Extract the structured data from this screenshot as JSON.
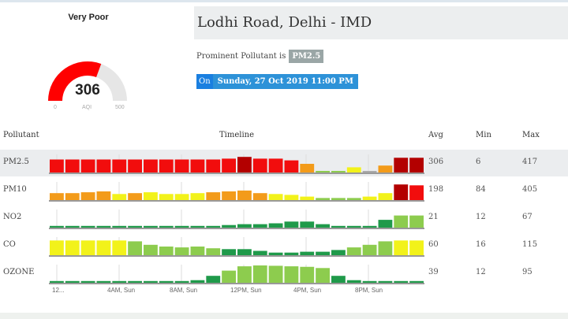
{
  "gauge": {
    "category": "Very Poor",
    "value": 306,
    "min_label": "0",
    "unit_label": "AQI",
    "max_label": "500",
    "max": 500,
    "fill_color": "#ff0000",
    "track_color": "#e6e6e6"
  },
  "station": {
    "title": "Lodhi Road, Delhi - IMD",
    "prominent_label": "Prominent Pollutant is",
    "prominent_value": "PM2.5",
    "on_label": "On",
    "datetime": "Sunday, 27 Oct 2019 11:00 PM"
  },
  "table": {
    "headers": {
      "pollutant": "Pollutant",
      "timeline": "Timeline",
      "avg": "Avg",
      "min": "Min",
      "max": "Max"
    },
    "colors": {
      "r": "#f20d0d",
      "dr": "#b30000",
      "o": "#f39b1a",
      "y": "#f2f21a",
      "lg": "#8dcc4e",
      "g": "#1f9a4a",
      "gr": "#aaaaaa"
    },
    "rows": [
      {
        "name": "PM2.5",
        "avg": "306",
        "min": "6",
        "max": "417",
        "bars": [
          [
            0.75,
            "r"
          ],
          [
            0.75,
            "r"
          ],
          [
            0.75,
            "r"
          ],
          [
            0.75,
            "r"
          ],
          [
            0.75,
            "r"
          ],
          [
            0.75,
            "r"
          ],
          [
            0.75,
            "r"
          ],
          [
            0.75,
            "r"
          ],
          [
            0.75,
            "r"
          ],
          [
            0.75,
            "r"
          ],
          [
            0.75,
            "r"
          ],
          [
            0.8,
            "r"
          ],
          [
            0.9,
            "dr"
          ],
          [
            0.8,
            "r"
          ],
          [
            0.8,
            "r"
          ],
          [
            0.7,
            "r"
          ],
          [
            0.5,
            "o"
          ],
          [
            0.08,
            "lg"
          ],
          [
            0.08,
            "lg"
          ],
          [
            0.3,
            "y"
          ],
          [
            0.04,
            "gr"
          ],
          [
            0.4,
            "o"
          ],
          [
            0.85,
            "dr"
          ],
          [
            0.85,
            "dr"
          ]
        ]
      },
      {
        "name": "PM10",
        "avg": "198",
        "min": "84",
        "max": "405",
        "bars": [
          [
            0.4,
            "o"
          ],
          [
            0.4,
            "o"
          ],
          [
            0.45,
            "o"
          ],
          [
            0.5,
            "o"
          ],
          [
            0.35,
            "y"
          ],
          [
            0.4,
            "o"
          ],
          [
            0.45,
            "y"
          ],
          [
            0.35,
            "y"
          ],
          [
            0.35,
            "y"
          ],
          [
            0.4,
            "y"
          ],
          [
            0.45,
            "o"
          ],
          [
            0.5,
            "o"
          ],
          [
            0.55,
            "o"
          ],
          [
            0.4,
            "o"
          ],
          [
            0.35,
            "y"
          ],
          [
            0.3,
            "y"
          ],
          [
            0.2,
            "y"
          ],
          [
            0.12,
            "lg"
          ],
          [
            0.12,
            "lg"
          ],
          [
            0.12,
            "lg"
          ],
          [
            0.2,
            "y"
          ],
          [
            0.4,
            "y"
          ],
          [
            0.9,
            "dr"
          ],
          [
            0.85,
            "r"
          ]
        ]
      },
      {
        "name": "NO2",
        "avg": "21",
        "min": "12",
        "max": "67",
        "bars": [
          [
            0.1,
            "g"
          ],
          [
            0.1,
            "g"
          ],
          [
            0.1,
            "g"
          ],
          [
            0.1,
            "g"
          ],
          [
            0.1,
            "g"
          ],
          [
            0.1,
            "g"
          ],
          [
            0.1,
            "g"
          ],
          [
            0.1,
            "g"
          ],
          [
            0.1,
            "g"
          ],
          [
            0.1,
            "g"
          ],
          [
            0.1,
            "g"
          ],
          [
            0.15,
            "g"
          ],
          [
            0.2,
            "g"
          ],
          [
            0.2,
            "g"
          ],
          [
            0.25,
            "g"
          ],
          [
            0.35,
            "g"
          ],
          [
            0.35,
            "g"
          ],
          [
            0.2,
            "g"
          ],
          [
            0.1,
            "g"
          ],
          [
            0.1,
            "g"
          ],
          [
            0.1,
            "g"
          ],
          [
            0.45,
            "g"
          ],
          [
            0.7,
            "lg"
          ],
          [
            0.7,
            "lg"
          ]
        ]
      },
      {
        "name": "CO",
        "avg": "60",
        "min": "16",
        "max": "115",
        "bars": [
          [
            0.85,
            "y"
          ],
          [
            0.85,
            "y"
          ],
          [
            0.85,
            "y"
          ],
          [
            0.85,
            "y"
          ],
          [
            0.85,
            "y"
          ],
          [
            0.8,
            "lg"
          ],
          [
            0.6,
            "lg"
          ],
          [
            0.5,
            "lg"
          ],
          [
            0.45,
            "lg"
          ],
          [
            0.5,
            "lg"
          ],
          [
            0.4,
            "lg"
          ],
          [
            0.35,
            "g"
          ],
          [
            0.35,
            "g"
          ],
          [
            0.25,
            "g"
          ],
          [
            0.15,
            "g"
          ],
          [
            0.15,
            "g"
          ],
          [
            0.2,
            "g"
          ],
          [
            0.2,
            "g"
          ],
          [
            0.3,
            "g"
          ],
          [
            0.45,
            "lg"
          ],
          [
            0.6,
            "lg"
          ],
          [
            0.8,
            "lg"
          ],
          [
            0.85,
            "y"
          ],
          [
            0.85,
            "y"
          ]
        ]
      },
      {
        "name": "OZONE",
        "avg": "39",
        "min": "12",
        "max": "95",
        "bars": [
          [
            0.1,
            "g"
          ],
          [
            0.1,
            "g"
          ],
          [
            0.1,
            "g"
          ],
          [
            0.1,
            "g"
          ],
          [
            0.1,
            "g"
          ],
          [
            0.1,
            "g"
          ],
          [
            0.1,
            "g"
          ],
          [
            0.1,
            "g"
          ],
          [
            0.1,
            "g"
          ],
          [
            0.15,
            "g"
          ],
          [
            0.4,
            "g"
          ],
          [
            0.7,
            "lg"
          ],
          [
            0.95,
            "lg"
          ],
          [
            1.0,
            "lg"
          ],
          [
            0.98,
            "lg"
          ],
          [
            0.95,
            "lg"
          ],
          [
            0.92,
            "lg"
          ],
          [
            0.85,
            "lg"
          ],
          [
            0.4,
            "g"
          ],
          [
            0.15,
            "g"
          ],
          [
            0.1,
            "g"
          ],
          [
            0.1,
            "g"
          ],
          [
            0.1,
            "g"
          ],
          [
            0.1,
            "g"
          ]
        ]
      }
    ],
    "axis_labels": [
      "12...",
      "4AM, Sun",
      "8AM, Sun",
      "12PM, Sun",
      "4PM, Sun",
      "8PM, Sun"
    ]
  }
}
